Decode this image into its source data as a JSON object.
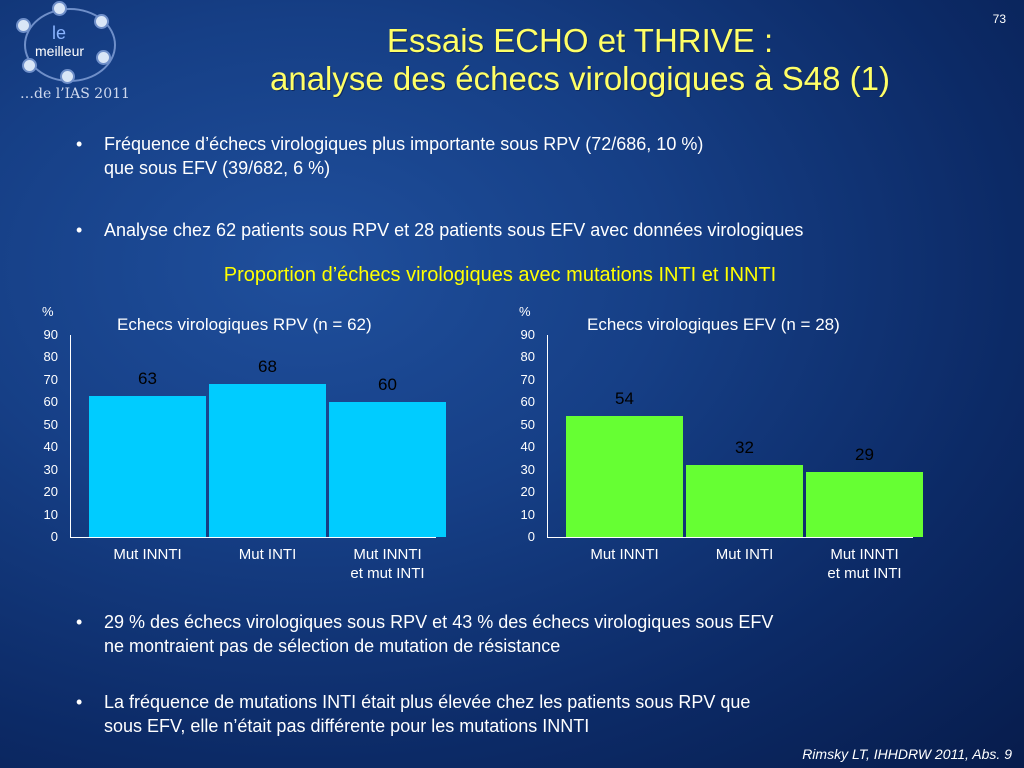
{
  "slide_number": "73",
  "logo": {
    "line1": "le",
    "line2": "meilleur",
    "line3": "…de l’IAS 2011"
  },
  "title": {
    "line1": "Essais ECHO et THRIVE :",
    "line2": "analyse des échecs virologiques à S48 (1)"
  },
  "bullets_top": [
    {
      "line1": "Fréquence d’échecs virologiques plus importante sous RPV (72/686, 10 %)",
      "line2": "que sous EFV (39/682, 6 %)"
    },
    {
      "line1": "Analyse chez 62 patients sous RPV et 28 patients sous EFV avec données virologiques"
    }
  ],
  "subtitle": "Proportion d’échecs virologiques avec mutations INTI et INNTI",
  "chart_data": [
    {
      "type": "bar",
      "title": "Echecs virologiques RPV (n = 62)",
      "ylabel": "%",
      "ylim": [
        0,
        90
      ],
      "yticks": [
        "90",
        "80",
        "70",
        "60",
        "50",
        "40",
        "30",
        "20",
        "10",
        "0"
      ],
      "categories": [
        "Mut  INNTI",
        "Mut INTI",
        "Mut  INNTI\net mut INTI"
      ],
      "values": [
        63,
        68,
        60
      ],
      "color": "#00ccff",
      "label_color": "#000000"
    },
    {
      "type": "bar",
      "title": "Echecs virologiques EFV (n = 28)",
      "ylabel": "%",
      "ylim": [
        0,
        90
      ],
      "yticks": [
        "90",
        "80",
        "70",
        "60",
        "50",
        "40",
        "30",
        "20",
        "10",
        "0"
      ],
      "categories": [
        "Mut INNTI",
        "Mut INTI",
        "Mut  INNTI\net mut INTI"
      ],
      "values": [
        54,
        32,
        29
      ],
      "color": "#66ff33",
      "label_color": "#000000"
    }
  ],
  "bullets_bottom": [
    {
      "line1": "29 % des échecs virologiques sous RPV et 43 % des échecs virologiques sous EFV",
      "line2": "ne montraient pas de sélection de mutation de résistance"
    },
    {
      "line1": "La fréquence de mutations INTI était plus élevée chez les patients sous RPV que",
      "line2": "sous EFV, elle n’était pas différente pour les mutations INNTI"
    }
  ],
  "source": "Rimsky LT, IHHDRW 2011, Abs. 9"
}
